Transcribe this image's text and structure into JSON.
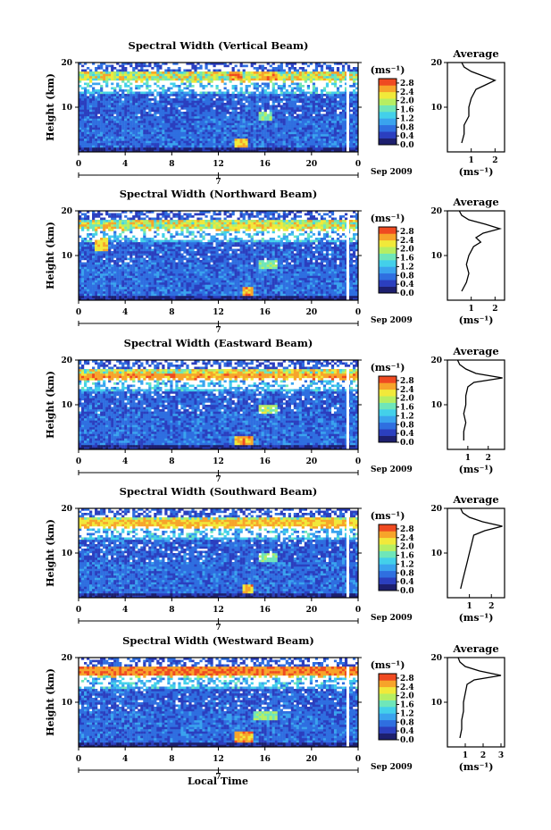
{
  "figure": {
    "x_axis_label": "Local Time",
    "date_label": "Sep 2009",
    "x_ticks": [
      "0",
      "4",
      "8",
      "12",
      "16",
      "20",
      "0"
    ],
    "x_range": [
      0,
      24
    ],
    "day_marker": "7",
    "colorbar_unit": "(ms⁻¹)",
    "colorbar_ticks": [
      "2.8",
      "2.4",
      "2.0",
      "1.6",
      "1.2",
      "0.8",
      "0.4",
      "0.0"
    ],
    "colorbar_range": [
      0.0,
      3.0
    ],
    "colormap": [
      "#1d1f6e",
      "#2b3fbf",
      "#2f6fe0",
      "#3aa3ee",
      "#43d0ea",
      "#6fe6b9",
      "#b6ee62",
      "#f1e93a",
      "#f7a42a",
      "#ef4a21"
    ],
    "height_label": "Height (km)",
    "height_ticks": [
      "20",
      "10"
    ],
    "height_range": [
      0,
      20
    ],
    "avg_title": "Average",
    "avg_unit_label": "(ms⁻¹)",
    "avg_height_ticks": [
      "20",
      "10"
    ]
  },
  "chart_data": [
    {
      "type": "heatmap",
      "title": "Spectral Width (Vertical Beam)",
      "xlabel": "Local Time",
      "ylabel": "Height (km)",
      "xlim": [
        0,
        24
      ],
      "ylim": [
        0,
        20
      ],
      "zlim": [
        0,
        3
      ],
      "avg_ticks": [
        "1",
        "2"
      ],
      "avg_tick_values": [
        1,
        2
      ],
      "avg_xlim": [
        0,
        2.4
      ],
      "features": [
        {
          "time": [
            13,
            14
          ],
          "height": [
            16,
            18
          ],
          "level": 2.8
        },
        {
          "time": [
            15.5,
            17
          ],
          "height": [
            16,
            18
          ],
          "level": 2.8
        },
        {
          "time": [
            13.5,
            14.5
          ],
          "height": [
            1,
            3
          ],
          "level": 2.6
        },
        {
          "time": [
            15.5,
            16.5
          ],
          "height": [
            7,
            9
          ],
          "level": 2.0
        }
      ],
      "average": {
        "height": [
          2,
          4,
          6,
          8,
          10,
          12,
          14,
          15,
          16,
          17,
          18,
          19,
          20
        ],
        "width": [
          0.6,
          0.7,
          0.7,
          0.9,
          0.9,
          1.0,
          1.2,
          1.6,
          2.0,
          1.5,
          1.0,
          0.7,
          0.6
        ]
      }
    },
    {
      "type": "heatmap",
      "title": "Spectral Width (Northward Beam)",
      "xlabel": "Local Time",
      "ylabel": "Height (km)",
      "xlim": [
        0,
        24
      ],
      "ylim": [
        0,
        20
      ],
      "zlim": [
        0,
        3
      ],
      "avg_ticks": [
        "1",
        "2"
      ],
      "avg_tick_values": [
        1,
        2
      ],
      "avg_xlim": [
        0,
        2.4
      ],
      "features": [
        {
          "time": [
            1.5,
            2.5
          ],
          "height": [
            11,
            14
          ],
          "level": 2.6
        },
        {
          "time": [
            14,
            15
          ],
          "height": [
            1,
            3
          ],
          "level": 2.8
        },
        {
          "time": [
            13,
            19
          ],
          "height": [
            15.5,
            17
          ],
          "level": 2.4
        },
        {
          "time": [
            15.5,
            17
          ],
          "height": [
            7,
            9
          ],
          "level": 2.0
        }
      ],
      "average": {
        "height": [
          2,
          4,
          6,
          8,
          10,
          12,
          13,
          14,
          15,
          16,
          17,
          18,
          19,
          20
        ],
        "width": [
          0.6,
          0.8,
          0.9,
          0.8,
          0.9,
          1.1,
          1.4,
          1.2,
          1.5,
          2.2,
          1.6,
          0.9,
          0.6,
          0.5
        ]
      }
    },
    {
      "type": "heatmap",
      "title": "Spectral Width (Eastward Beam)",
      "xlabel": "Local Time",
      "ylabel": "Height (km)",
      "xlim": [
        0,
        24
      ],
      "ylim": [
        0,
        20
      ],
      "zlim": [
        0,
        3
      ],
      "avg_ticks": [
        "1",
        "2"
      ],
      "avg_tick_values": [
        1,
        2
      ],
      "avg_xlim": [
        0,
        2.8
      ],
      "features": [
        {
          "time": [
            0,
            24
          ],
          "height": [
            15.5,
            17
          ],
          "level": 2.8
        },
        {
          "time": [
            13.5,
            15
          ],
          "height": [
            1,
            3
          ],
          "level": 2.8
        },
        {
          "time": [
            15.5,
            17
          ],
          "height": [
            8,
            10
          ],
          "level": 2.2
        }
      ],
      "average": {
        "height": [
          2,
          4,
          6,
          8,
          10,
          12,
          14,
          15,
          16,
          17,
          18,
          19,
          20
        ],
        "width": [
          0.8,
          0.8,
          0.9,
          0.8,
          0.9,
          0.9,
          1.0,
          1.3,
          2.7,
          1.4,
          0.9,
          0.6,
          0.5
        ]
      }
    },
    {
      "type": "heatmap",
      "title": "Spectral Width (Southward Beam)",
      "xlabel": "Local Time",
      "ylabel": "Height (km)",
      "xlim": [
        0,
        24
      ],
      "ylim": [
        0,
        20
      ],
      "zlim": [
        0,
        3
      ],
      "avg_ticks": [
        "1",
        "2"
      ],
      "avg_tick_values": [
        1,
        2
      ],
      "avg_xlim": [
        0,
        2.6
      ],
      "features": [
        {
          "time": [
            0,
            24
          ],
          "height": [
            15.5,
            17.5
          ],
          "level": 2.6
        },
        {
          "time": [
            14,
            15
          ],
          "height": [
            1,
            3
          ],
          "level": 2.8
        },
        {
          "time": [
            15.5,
            17
          ],
          "height": [
            8,
            10
          ],
          "level": 2.0
        }
      ],
      "average": {
        "height": [
          2,
          4,
          6,
          8,
          10,
          12,
          14,
          15,
          16,
          17,
          18,
          19,
          20
        ],
        "width": [
          0.6,
          0.7,
          0.8,
          0.9,
          1.0,
          1.1,
          1.2,
          1.7,
          2.5,
          1.6,
          1.0,
          0.7,
          0.6
        ]
      }
    },
    {
      "type": "heatmap",
      "title": "Spectral Width (Westward Beam)",
      "xlabel": "Local Time",
      "ylabel": "Height (km)",
      "xlim": [
        0,
        24
      ],
      "ylim": [
        0,
        20
      ],
      "zlim": [
        0,
        3
      ],
      "avg_ticks": [
        "1",
        "2",
        "3"
      ],
      "avg_tick_values": [
        1,
        2,
        3
      ],
      "avg_xlim": [
        0,
        3.2
      ],
      "features": [
        {
          "time": [
            0,
            24
          ],
          "height": [
            16,
            18
          ],
          "level": 2.9
        },
        {
          "time": [
            13.5,
            15
          ],
          "height": [
            1,
            3.5
          ],
          "level": 2.8
        },
        {
          "time": [
            15,
            17
          ],
          "height": [
            6,
            8
          ],
          "level": 2.0
        }
      ],
      "average": {
        "height": [
          2,
          4,
          6,
          8,
          10,
          12,
          14,
          15,
          16,
          17,
          18,
          19,
          20
        ],
        "width": [
          0.7,
          0.8,
          0.8,
          0.9,
          0.9,
          1.0,
          1.1,
          1.5,
          3.0,
          1.8,
          1.0,
          0.7,
          0.6
        ]
      }
    }
  ]
}
